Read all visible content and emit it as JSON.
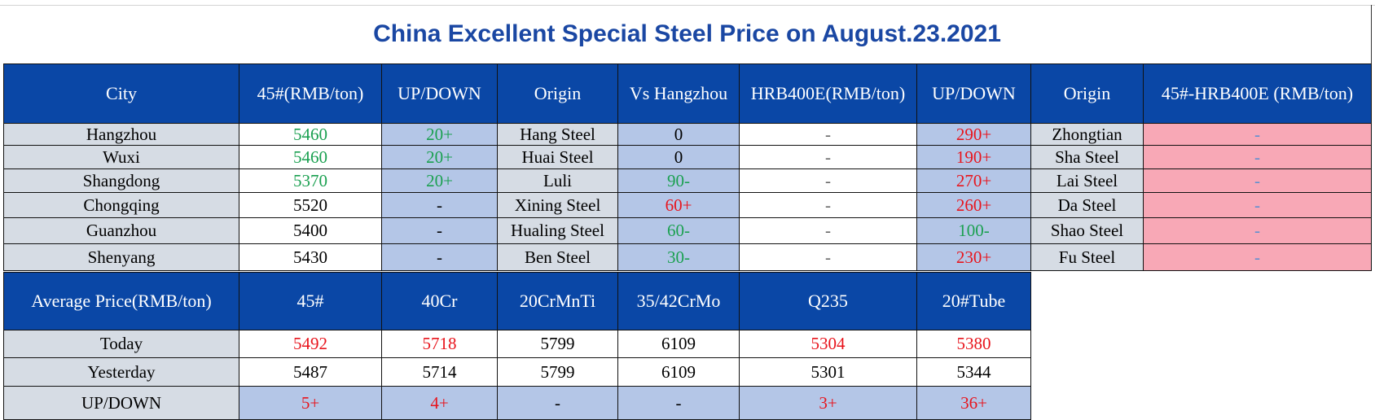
{
  "title": "China Excellent Special Steel Price on August.23.2021",
  "city_table": {
    "headers": [
      "City",
      "45#(RMB/ton)",
      "UP/DOWN",
      "Origin",
      "Vs Hangzhou",
      "HRB400E(RMB/ton)",
      "UP/DOWN",
      "Origin",
      "45#-HRB400E (RMB/ton)"
    ],
    "rows": [
      {
        "city": "Hangzhou",
        "price45": "5460",
        "updown45": "20+",
        "origin": "Hang Steel",
        "vs": "0",
        "hrb": "-",
        "updown_hrb": "290+",
        "origin2": "Zhongtian",
        "diff": "-"
      },
      {
        "city": "Wuxi",
        "price45": "5460",
        "updown45": "20+",
        "origin": "Huai Steel",
        "vs": "0",
        "hrb": "-",
        "updown_hrb": "190+",
        "origin2": "Sha Steel",
        "diff": "-"
      },
      {
        "city": "Shangdong",
        "price45": "5370",
        "updown45": "20+",
        "origin": "Luli",
        "vs": "90-",
        "hrb": "-",
        "updown_hrb": "270+",
        "origin2": "Lai Steel",
        "diff": "-"
      },
      {
        "city": "Chongqing",
        "price45": "5520",
        "updown45": "-",
        "origin": "Xining Steel",
        "vs": "60+",
        "hrb": "-",
        "updown_hrb": "260+",
        "origin2": "Da Steel",
        "diff": "-"
      },
      {
        "city": "Guanzhou",
        "price45": "5400",
        "updown45": "-",
        "origin": "Hualing Steel",
        "vs": "60-",
        "hrb": "-",
        "updown_hrb": "100-",
        "origin2": "Shao Steel",
        "diff": "-"
      },
      {
        "city": "Shenyang",
        "price45": "5430",
        "updown45": "-",
        "origin": "Ben Steel",
        "vs": "30-",
        "hrb": "-",
        "updown_hrb": "230+",
        "origin2": "Fu Steel",
        "diff": "-"
      }
    ]
  },
  "average_table": {
    "headers": [
      "Average Price(RMB/ton)",
      "45#",
      "40Cr",
      "20CrMnTi",
      "35/42CrMo",
      "Q235",
      "20#Tube"
    ],
    "today": {
      "label": "Today",
      "values": [
        "5492",
        "5718",
        "5799",
        "6109",
        "5304",
        "5380"
      ]
    },
    "yesterday": {
      "label": "Yesterday",
      "values": [
        "5487",
        "5714",
        "5799",
        "6109",
        "5301",
        "5344"
      ]
    },
    "updown": {
      "label": "UP/DOWN",
      "values": [
        "5+",
        "4+",
        "-",
        "-",
        "3+",
        "36+"
      ]
    }
  },
  "colors": {
    "header_bg": "#0a47a6",
    "title": "#1a47a3",
    "up": "#e8141c",
    "down": "#1aa050",
    "pink": "#f8a8b6",
    "light_blue": "#b4c6e7",
    "gray": "#d6dce4"
  }
}
